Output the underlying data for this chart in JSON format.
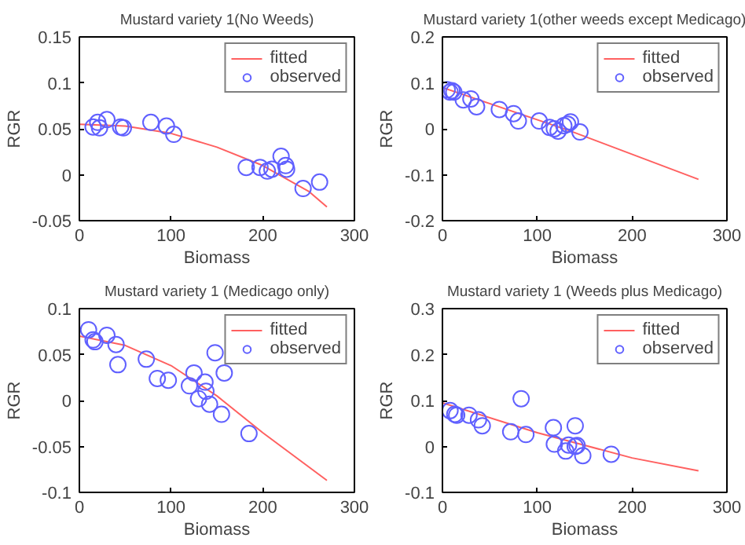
{
  "chart_data": [
    {
      "type": "scatter",
      "title": "Mustard variety 1(No Weeds)",
      "xlabel": "Biomass",
      "ylabel": "RGR",
      "xlim": [
        0,
        300
      ],
      "ylim": [
        -0.05,
        0.15
      ],
      "xticks": [
        0,
        100,
        200,
        300
      ],
      "yticks": [
        -0.05,
        0,
        0.05,
        0.1,
        0.15
      ],
      "grid": false,
      "legend": "top right",
      "series": [
        {
          "name": "fitted",
          "type": "line",
          "color": "#ff6060",
          "line_style": "solid",
          "x": [
            0,
            50,
            100,
            150,
            200,
            250,
            270
          ],
          "values": [
            0.055,
            0.053,
            0.045,
            0.03,
            0.01,
            -0.018,
            -0.035
          ]
        },
        {
          "name": "observed",
          "color": "#6060ff",
          "marker": "circle",
          "x": [
            15,
            20,
            22,
            30,
            45,
            48,
            78,
            95,
            103,
            182,
            197,
            205,
            210,
            220,
            225,
            226,
            244,
            262
          ],
          "values": [
            0.052,
            0.057,
            0.051,
            0.06,
            0.052,
            0.051,
            0.057,
            0.053,
            0.044,
            0.008,
            0.008,
            0.004,
            0.006,
            0.02,
            0.01,
            0.006,
            -0.015,
            -0.008
          ]
        }
      ]
    },
    {
      "type": "scatter",
      "title": "Mustard variety 1(other weeds except Medicago)",
      "xlabel": "Biomass",
      "ylabel": "RGR",
      "xlim": [
        0,
        300
      ],
      "ylim": [
        -0.2,
        0.2
      ],
      "xticks": [
        0,
        100,
        200,
        300
      ],
      "yticks": [
        -0.2,
        -0.1,
        0,
        0.1,
        0.2
      ],
      "grid": false,
      "legend": "top right",
      "series": [
        {
          "name": "fitted",
          "type": "line",
          "color": "#ff6060",
          "line_style": "solid",
          "x": [
            0,
            135,
            270
          ],
          "values": [
            0.09,
            -0.005,
            -0.11
          ]
        },
        {
          "name": "observed",
          "color": "#6060ff",
          "marker": "circle",
          "x": [
            5,
            8,
            10,
            12,
            22,
            30,
            36,
            60,
            75,
            80,
            102,
            113,
            118,
            122,
            128,
            132,
            135,
            145
          ],
          "values": [
            0.085,
            0.08,
            0.083,
            0.08,
            0.063,
            0.065,
            0.048,
            0.042,
            0.033,
            0.017,
            0.017,
            0.003,
            0.0,
            -0.005,
            0.007,
            0.01,
            0.015,
            -0.007
          ]
        }
      ]
    },
    {
      "type": "scatter",
      "title": "Mustard variety 1 (Medicago only)",
      "xlabel": "Biomass",
      "ylabel": "RGR",
      "xlim": [
        0,
        300
      ],
      "ylim": [
        -0.1,
        0.1
      ],
      "xticks": [
        0,
        100,
        200,
        300
      ],
      "yticks": [
        -0.1,
        -0.05,
        0,
        0.05,
        0.1
      ],
      "grid": false,
      "legend": "top right",
      "series": [
        {
          "name": "fitted",
          "type": "line",
          "color": "#ff6060",
          "line_style": "solid",
          "x": [
            0,
            50,
            100,
            150,
            200,
            270
          ],
          "values": [
            0.07,
            0.06,
            0.038,
            0.005,
            -0.035,
            -0.087
          ]
        },
        {
          "name": "observed",
          "color": "#6060ff",
          "marker": "circle",
          "x": [
            10,
            15,
            17,
            30,
            40,
            42,
            73,
            85,
            97,
            120,
            125,
            130,
            137,
            138,
            142,
            148,
            155,
            158,
            185
          ],
          "values": [
            0.077,
            0.066,
            0.064,
            0.071,
            0.061,
            0.039,
            0.045,
            0.024,
            0.022,
            0.016,
            0.03,
            0.002,
            0.02,
            0.01,
            -0.004,
            0.052,
            -0.015,
            0.03,
            -0.036
          ]
        }
      ]
    },
    {
      "type": "scatter",
      "title": "Mustard variety 1 (Weeds plus Medicago)",
      "xlabel": "Biomass",
      "ylabel": "RGR",
      "xlim": [
        0,
        300
      ],
      "ylim": [
        -0.1,
        0.3
      ],
      "xticks": [
        0,
        100,
        200,
        300
      ],
      "yticks": [
        -0.1,
        0,
        0.1,
        0.2,
        0.3
      ],
      "grid": false,
      "legend": "top right",
      "series": [
        {
          "name": "fitted",
          "type": "line",
          "color": "#ff6060",
          "line_style": "solid",
          "x": [
            0,
            100,
            200,
            270
          ],
          "values": [
            0.095,
            0.03,
            -0.025,
            -0.053
          ]
        },
        {
          "name": "observed",
          "color": "#6060ff",
          "marker": "circle",
          "x": [
            8,
            13,
            15,
            28,
            38,
            42,
            72,
            83,
            88,
            117,
            118,
            130,
            133,
            140,
            140,
            142,
            148,
            178
          ],
          "values": [
            0.078,
            0.07,
            0.068,
            0.068,
            0.058,
            0.045,
            0.032,
            0.104,
            0.026,
            0.041,
            0.005,
            -0.01,
            0.003,
            0.045,
            0.0,
            0.002,
            -0.02,
            -0.017
          ]
        }
      ]
    }
  ]
}
